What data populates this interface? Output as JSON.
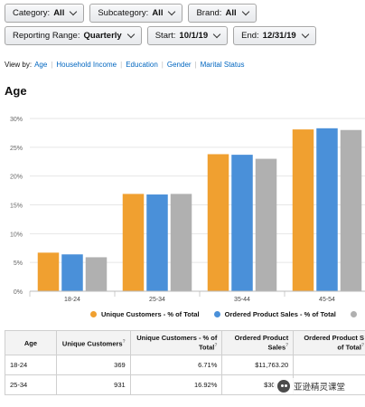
{
  "filters": {
    "row1": [
      {
        "label": "Category:",
        "value": "All"
      },
      {
        "label": "Subcategory:",
        "value": "All"
      },
      {
        "label": "Brand:",
        "value": "All"
      }
    ],
    "row2": [
      {
        "label": "Reporting Range:",
        "value": "Quarterly"
      },
      {
        "label": "Start:",
        "value": "10/1/19"
      },
      {
        "label": "End:",
        "value": "12/31/19"
      }
    ]
  },
  "view_by": {
    "label": "View by:",
    "links": [
      "Age",
      "Household Income",
      "Education",
      "Gender",
      "Marital Status"
    ]
  },
  "section_title": "Age",
  "chart_data": {
    "type": "bar",
    "categories": [
      "18-24",
      "25-34",
      "35-44",
      "45-54"
    ],
    "series": [
      {
        "name": "Unique Customers - % of Total",
        "color": "#f0a030",
        "values": [
          6.7,
          16.9,
          23.8,
          28.1
        ]
      },
      {
        "name": "Ordered Product Sales - % of Total",
        "color": "#4a90d9",
        "values": [
          6.4,
          16.8,
          23.7,
          28.3
        ]
      },
      {
        "name": "",
        "color": "#b0b0b0",
        "values": [
          5.9,
          16.9,
          23.0,
          28.0
        ]
      }
    ],
    "y_ticks": [
      "0%",
      "5%",
      "10%",
      "15%",
      "20%",
      "25%",
      "30%"
    ],
    "ylim": [
      0,
      30
    ],
    "grid": true
  },
  "table": {
    "headers": [
      "Age",
      "Unique Customers",
      "Unique Customers - % of Total",
      "Ordered Product Sales",
      "Ordered Product S of Total"
    ],
    "rows": [
      [
        "18-24",
        "369",
        "6.71%",
        "$11,763.20",
        ""
      ],
      [
        "25-34",
        "931",
        "16.92%",
        "$30,587",
        ""
      ]
    ]
  },
  "watermark": {
    "text": "亚逊精灵课堂"
  }
}
